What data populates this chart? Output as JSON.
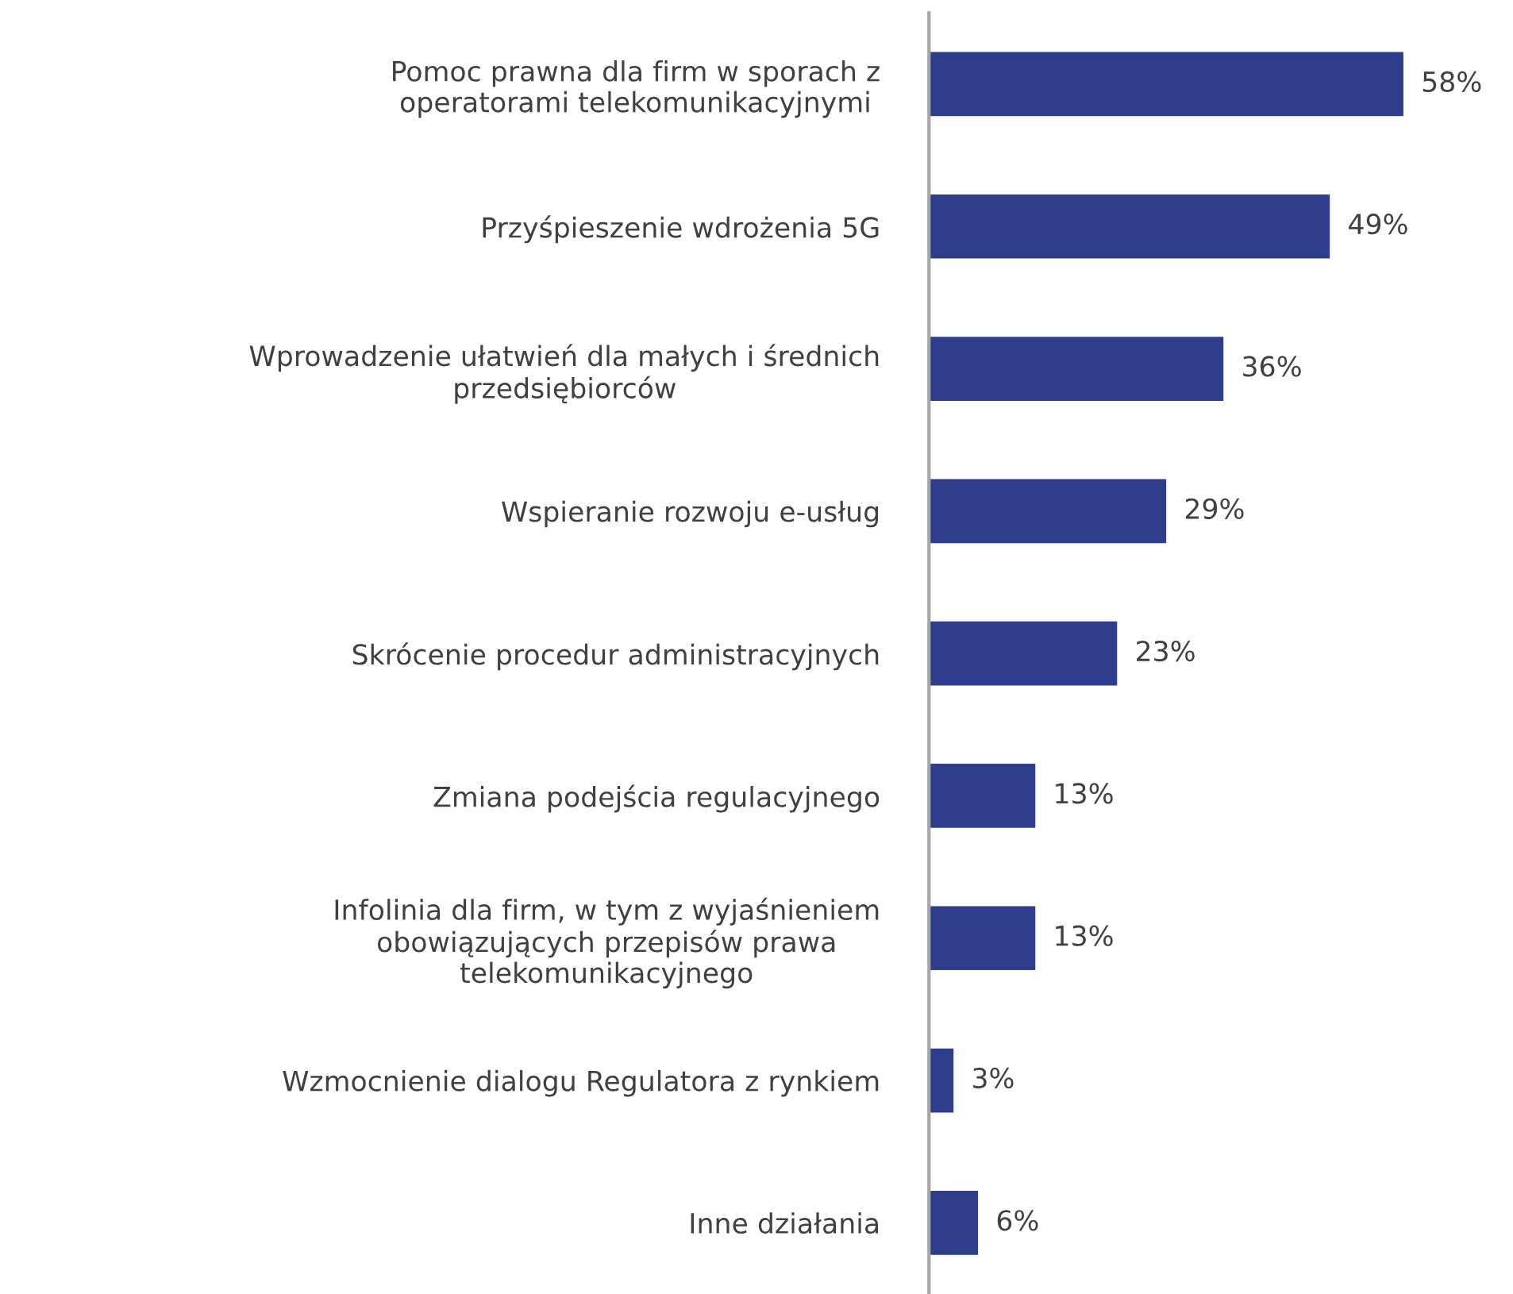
{
  "chart_data": {
    "type": "bar",
    "orientation": "horizontal",
    "categories": [
      "Pomoc prawna dla firm w sporach z\noperatorami telekomunikacyjnymi",
      "Przyśpieszenie wdrożenia 5G",
      "Wprowadzenie ułatwień dla małych i średnich\nprzedsiębiorców",
      "Wspieranie rozwoju e-usług",
      "Skrócenie procedur administracyjnych",
      "Zmiana podejścia regulacyjnego",
      "Infolinia dla firm, w tym z wyjaśnieniem\nobowiązujących przepisów prawa\ntelekomunikacyjnego",
      "Wzmocnienie dialogu Regulatora z rynkiem",
      "Inne działania"
    ],
    "values": [
      58,
      49,
      36,
      29,
      23,
      13,
      13,
      3,
      6
    ],
    "value_labels": [
      "58%",
      "49%",
      "36%",
      "29%",
      "23%",
      "13%",
      "13%",
      "3%",
      "6%"
    ],
    "color": "#2f3e8c",
    "tick_labels": "y"
  }
}
